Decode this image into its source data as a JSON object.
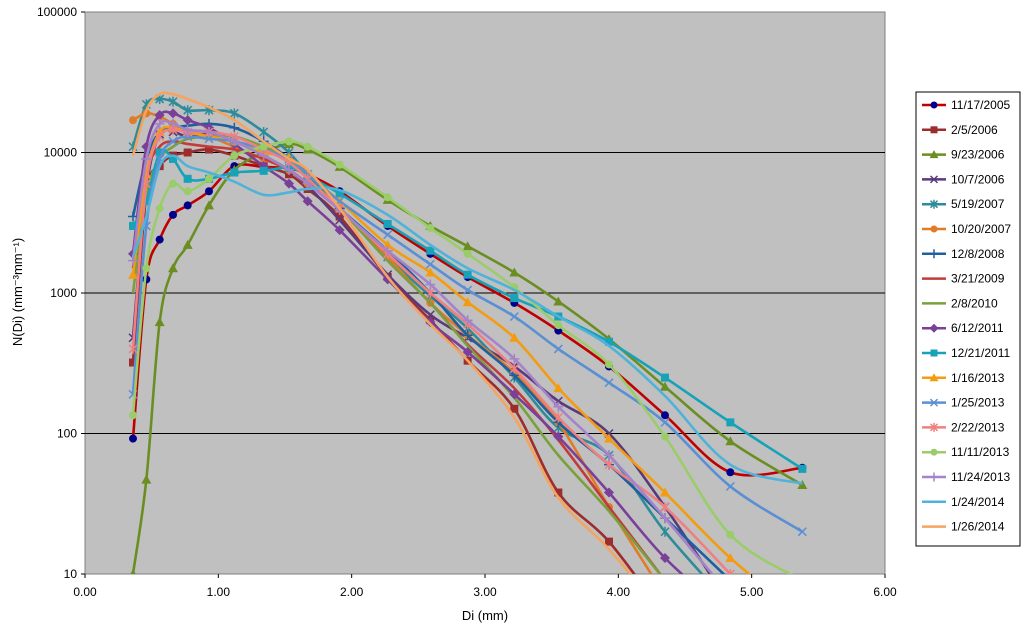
{
  "chart_data": {
    "type": "line",
    "xlabel": "Di (mm)",
    "ylabel": "N(Di) (mm⁻³mm⁻¹)",
    "xlim": [
      0,
      6
    ],
    "ylim": [
      10,
      100000
    ],
    "y_scale": "log",
    "x_ticks": [
      "0.00",
      "1.00",
      "2.00",
      "3.00",
      "4.00",
      "5.00",
      "6.00"
    ],
    "y_ticks": [
      "10",
      "100",
      "1000",
      "10000",
      "100000"
    ],
    "grid": "horizontal",
    "legend_position": "right",
    "plot_background": "#c0c0c0",
    "x": [
      0.36,
      0.46,
      0.56,
      0.66,
      0.77,
      0.93,
      1.12,
      1.34,
      1.53,
      1.67,
      1.91,
      2.27,
      2.59,
      2.87,
      3.22,
      3.55,
      3.93,
      4.35,
      4.84,
      5.38
    ],
    "series": [
      {
        "name": "11/17/2005",
        "color": "#c00000",
        "marker": "circle",
        "marker_color": "#00008b",
        "values": [
          92,
          1250,
          2400,
          3600,
          4200,
          5300,
          8000,
          7900,
          7700,
          7000,
          5300,
          3000,
          1900,
          1300,
          850,
          540,
          300,
          135,
          53,
          57
        ]
      },
      {
        "name": "2/5/2006",
        "color": "#9b2d2d",
        "marker": "square",
        "values": [
          320,
          5000,
          8000,
          9500,
          10000,
          10500,
          9500,
          8000,
          7000,
          5500,
          3500,
          1300,
          640,
          330,
          150,
          38,
          17,
          5,
          null,
          null
        ]
      },
      {
        "name": "9/23/2006",
        "color": "#6b8e23",
        "marker": "triangle",
        "values": [
          10,
          47,
          620,
          1500,
          2200,
          4200,
          7500,
          10000,
          11500,
          10500,
          7900,
          4600,
          3000,
          2150,
          1400,
          870,
          470,
          215,
          88,
          43
        ]
      },
      {
        "name": "10/7/2006",
        "color": "#5c3a7a",
        "marker": "x",
        "values": [
          480,
          5500,
          13500,
          14000,
          13000,
          13500,
          12000,
          9500,
          7500,
          5800,
          3300,
          1350,
          700,
          480,
          300,
          170,
          100,
          30,
          6,
          null
        ]
      },
      {
        "name": "5/19/2007",
        "color": "#2e8b9a",
        "marker": "asterisk",
        "values": [
          11000,
          22000,
          24000,
          23000,
          20000,
          20000,
          19000,
          14000,
          10000,
          7000,
          4000,
          1800,
          950,
          560,
          250,
          110,
          70,
          20,
          6,
          null
        ]
      },
      {
        "name": "10/20/2007",
        "color": "#e07b28",
        "marker": "circle",
        "values": [
          17000,
          19000,
          18000,
          16000,
          14000,
          13000,
          11000,
          9000,
          7500,
          6000,
          4000,
          1800,
          850,
          500,
          270,
          120,
          30,
          7,
          null,
          null
        ]
      },
      {
        "name": "12/8/2008",
        "color": "#1f5f9e",
        "marker": "plus",
        "values": [
          3500,
          9000,
          14000,
          15000,
          15500,
          16000,
          15000,
          12000,
          9000,
          6500,
          4000,
          2000,
          1000,
          500,
          260,
          120,
          60,
          25,
          9,
          null
        ]
      },
      {
        "name": "3/21/2009",
        "color": "#c23b3b",
        "marker": "none",
        "values": [
          1500,
          7000,
          11000,
          12000,
          11500,
          11000,
          10500,
          9000,
          7500,
          6000,
          4000,
          1700,
          850,
          430,
          210,
          90,
          30,
          9,
          null,
          null
        ]
      },
      {
        "name": "2/8/2010",
        "color": "#7aa03c",
        "marker": "none",
        "values": [
          1000,
          5000,
          9000,
          11000,
          12500,
          13000,
          13000,
          11000,
          9000,
          6500,
          4000,
          1700,
          850,
          420,
          180,
          70,
          28,
          9,
          null,
          null
        ]
      },
      {
        "name": "6/12/2011",
        "color": "#7a3f98",
        "marker": "diamond",
        "values": [
          1900,
          11000,
          18500,
          19000,
          17000,
          15000,
          11500,
          8000,
          6000,
          4500,
          2800,
          1250,
          620,
          380,
          190,
          95,
          38,
          13,
          5,
          null
        ]
      },
      {
        "name": "12/21/2011",
        "color": "#17a2b8",
        "marker": "square",
        "values": [
          3000,
          4500,
          10000,
          9000,
          6500,
          6500,
          7200,
          7400,
          7800,
          6800,
          5100,
          3100,
          2000,
          1350,
          920,
          680,
          450,
          250,
          120,
          56
        ]
      },
      {
        "name": "1/16/2013",
        "color": "#f39c12",
        "marker": "triangle",
        "values": [
          1350,
          7000,
          14000,
          15000,
          14000,
          13000,
          12000,
          10000,
          9200,
          7000,
          4500,
          2200,
          1400,
          860,
          480,
          210,
          92,
          38,
          13,
          5
        ]
      },
      {
        "name": "1/25/2013",
        "color": "#5b8fd4",
        "marker": "x",
        "values": [
          190,
          3000,
          9000,
          12000,
          13000,
          12500,
          12000,
          10500,
          9000,
          7000,
          4500,
          2600,
          1600,
          1050,
          680,
          400,
          230,
          120,
          42,
          20
        ]
      },
      {
        "name": "2/22/2013",
        "color": "#f08080",
        "marker": "asterisk",
        "values": [
          400,
          6000,
          13000,
          14500,
          14000,
          14000,
          13000,
          10500,
          8500,
          6500,
          4000,
          1900,
          1000,
          600,
          290,
          130,
          60,
          30,
          10,
          null
        ]
      },
      {
        "name": "11/11/2013",
        "color": "#9acd6a",
        "marker": "circle",
        "values": [
          135,
          1500,
          4000,
          6000,
          5300,
          6500,
          9500,
          11000,
          12000,
          11000,
          8200,
          4800,
          2900,
          1900,
          1100,
          590,
          310,
          95,
          19,
          9
        ]
      },
      {
        "name": "11/24/2013",
        "color": "#a583c9",
        "marker": "plus",
        "values": [
          1700,
          9000,
          16000,
          16000,
          14500,
          14000,
          12000,
          9500,
          7500,
          6000,
          3900,
          2000,
          1150,
          640,
          340,
          155,
          70,
          25,
          7,
          null
        ]
      },
      {
        "name": "1/24/2014",
        "color": "#4fb3d9",
        "marker": "none",
        "values": [
          1800,
          3500,
          8000,
          9500,
          8000,
          7200,
          6200,
          5000,
          5200,
          5500,
          5400,
          3600,
          2200,
          1500,
          1050,
          680,
          420,
          185,
          60,
          44
        ]
      },
      {
        "name": "1/26/2014",
        "color": "#f4a460",
        "marker": "none",
        "values": [
          9500,
          20000,
          26000,
          26000,
          24000,
          21000,
          17000,
          12000,
          9000,
          7500,
          4000,
          1300,
          600,
          330,
          130,
          35,
          15,
          5,
          null,
          null
        ]
      }
    ]
  }
}
